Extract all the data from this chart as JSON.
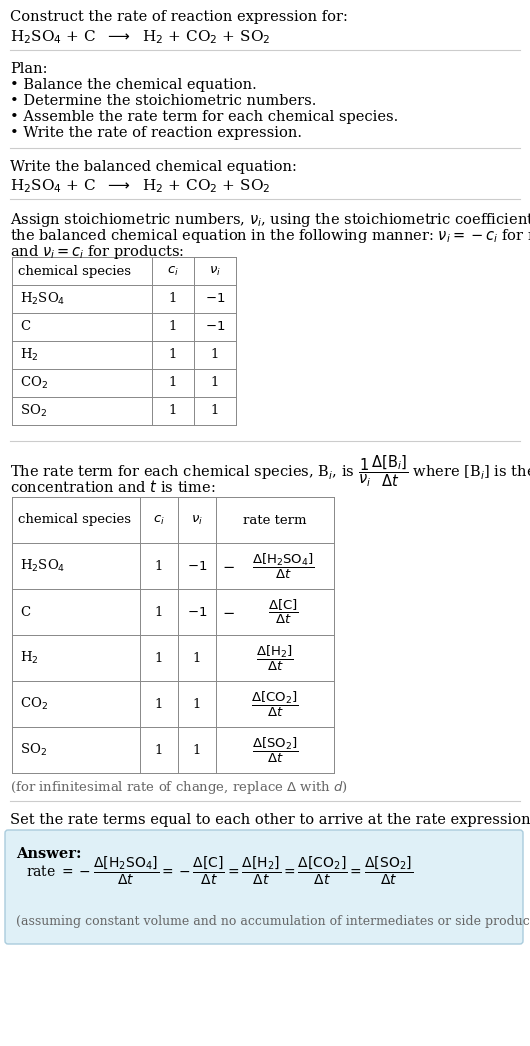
{
  "bg_color": "#ffffff",
  "text_color": "#000000",
  "gray_text": "#666666",
  "answer_bg": "#dff0f7",
  "answer_border": "#aaccdd",
  "title_line1": "Construct the rate of reaction expression for:",
  "title_line2": "H$_2$SO$_4$ + C  $\\longrightarrow$  H$_2$ + CO$_2$ + SO$_2$",
  "plan_header": "Plan:",
  "plan_bullets": [
    "• Balance the chemical equation.",
    "• Determine the stoichiometric numbers.",
    "• Assemble the rate term for each chemical species.",
    "• Write the rate of reaction expression."
  ],
  "balanced_header": "Write the balanced chemical equation:",
  "balanced_eq": "H$_2$SO$_4$ + C  $\\longrightarrow$  H$_2$ + CO$_2$ + SO$_2$",
  "stoich_intro1": "Assign stoichiometric numbers, $\\nu_i$, using the stoichiometric coefficients, $c_i$, from",
  "stoich_intro2": "the balanced chemical equation in the following manner: $\\nu_i = -c_i$ for reactants",
  "stoich_intro3": "and $\\nu_i = c_i$ for products:",
  "table1_headers": [
    "chemical species",
    "$c_i$",
    "$\\nu_i$"
  ],
  "table1_rows": [
    [
      "H$_2$SO$_4$",
      "1",
      "$-1$"
    ],
    [
      "C",
      "1",
      "$-1$"
    ],
    [
      "H$_2$",
      "1",
      "1"
    ],
    [
      "CO$_2$",
      "1",
      "1"
    ],
    [
      "SO$_2$",
      "1",
      "1"
    ]
  ],
  "rate_intro1": "The rate term for each chemical species, B$_i$, is $\\dfrac{1}{\\nu_i}\\dfrac{\\Delta[\\mathrm{B}_i]}{\\Delta t}$ where [B$_i$] is the amount",
  "rate_intro2": "concentration and $t$ is time:",
  "table2_headers": [
    "chemical species",
    "$c_i$",
    "$\\nu_i$",
    "rate term"
  ],
  "table2_data": [
    [
      "H$_2$SO$_4$",
      "1",
      "$-1$"
    ],
    [
      "C",
      "1",
      "$-1$"
    ],
    [
      "H$_2$",
      "1",
      "1"
    ],
    [
      "CO$_2$",
      "1",
      "1"
    ],
    [
      "SO$_2$",
      "1",
      "1"
    ]
  ],
  "table2_rate_terms": [
    [
      "$-$",
      "$\\dfrac{\\Delta[\\mathrm{H_2SO_4}]}{\\Delta t}$"
    ],
    [
      "$-$",
      "$\\dfrac{\\Delta[\\mathrm{C}]}{\\Delta t}$"
    ],
    [
      "",
      "$\\dfrac{\\Delta[\\mathrm{H_2}]}{\\Delta t}$"
    ],
    [
      "",
      "$\\dfrac{\\Delta[\\mathrm{CO_2}]}{\\Delta t}$"
    ],
    [
      "",
      "$\\dfrac{\\Delta[\\mathrm{SO_2}]}{\\Delta t}$"
    ]
  ],
  "infinitesimal_note": "(for infinitesimal rate of change, replace $\\Delta$ with $d$)",
  "set_equal_text": "Set the rate terms equal to each other to arrive at the rate expression:",
  "answer_label": "Answer:",
  "assuming_note": "(assuming constant volume and no accumulation of intermediates or side products)"
}
